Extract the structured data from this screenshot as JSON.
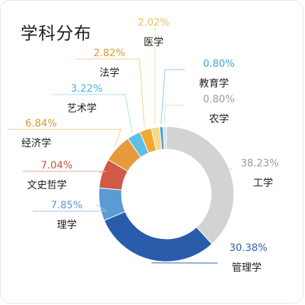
{
  "chart_data": {
    "type": "pie",
    "title": "学科分布",
    "slices": [
      {
        "label": "工学",
        "value": 38.23,
        "value_label": "38.23%",
        "color": "#d3d3d3",
        "label_color": "#9a9a9a",
        "line_color": "#cfcfcf"
      },
      {
        "label": "管理学",
        "value": 30.38,
        "value_label": "30.38%",
        "color": "#2a5cab",
        "label_color": "#2a5cab",
        "line_color": "#2a5cab"
      },
      {
        "label": "理学",
        "value": 7.85,
        "value_label": "7.85%",
        "color": "#5a9ad5",
        "label_color": "#5a9ad5",
        "line_color": "#9cc3ea"
      },
      {
        "label": "文史哲学",
        "value": 7.04,
        "value_label": "7.04%",
        "color": "#d05a45",
        "label_color": "#c9503d",
        "line_color": "#e8a498"
      },
      {
        "label": "经济学",
        "value": 6.84,
        "value_label": "6.84%",
        "color": "#e59a3c",
        "label_color": "#d9922f",
        "line_color": "#f0c98f"
      },
      {
        "label": "艺术学",
        "value": 3.22,
        "value_label": "3.22%",
        "color": "#5fc0e6",
        "label_color": "#45b3e0",
        "line_color": "#a8dcf2"
      },
      {
        "label": "法学",
        "value": 2.82,
        "value_label": "2.82%",
        "color": "#f2a833",
        "label_color": "#dd9a2b",
        "line_color": "#f6d08e"
      },
      {
        "label": "医学",
        "value": 2.02,
        "value_label": "2.02%",
        "color": "#f6d98c",
        "label_color": "#e3c062",
        "line_color": "#f4dd9c"
      },
      {
        "label": "教育学",
        "value": 0.8,
        "value_label": "0.80%",
        "color": "#3f9fd8",
        "label_color": "#3fa4dc",
        "line_color": "#8ccbec"
      },
      {
        "label": "农学",
        "value": 0.8,
        "value_label": "0.80%",
        "color": "#dcdcdc",
        "label_color": "#9a9a9a",
        "line_color": "#d8d8d8"
      }
    ]
  }
}
